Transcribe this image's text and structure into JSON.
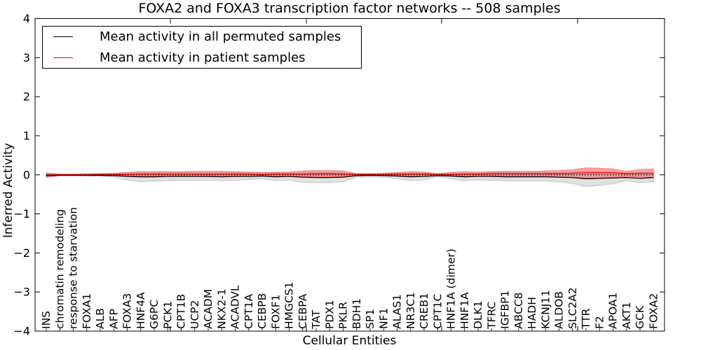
{
  "title": "FOXA2 and FOXA3 transcription factor networks -- 508 samples",
  "axes": {
    "x_label": "Cellular Entities",
    "y_label": "Inferred Activity",
    "y_ticks": [
      {
        "label": "4",
        "value": 4
      },
      {
        "label": "3",
        "value": 3
      },
      {
        "label": "2",
        "value": 2
      },
      {
        "label": "1",
        "value": 1
      },
      {
        "label": "0",
        "value": 0
      },
      {
        "label": "−1",
        "value": -1
      },
      {
        "label": "−2",
        "value": -2
      },
      {
        "label": "−3",
        "value": -3
      },
      {
        "label": "−4",
        "value": -4
      }
    ]
  },
  "legend": [
    {
      "label": "Mean activity in all permuted samples",
      "color": "#000000"
    },
    {
      "label": "Mean activity in patient samples",
      "color": "#ff0000"
    }
  ],
  "colors": {
    "permuted_line": "#000000",
    "permuted_band": "#bdbdbd",
    "patient_line": "#ff0000",
    "patient_band": "#ff4d4d",
    "zero_line": "#000000"
  },
  "chart_data": {
    "type": "line",
    "title": "FOXA2 and FOXA3 transcription factor networks -- 508 samples",
    "xlabel": "Cellular Entities",
    "ylabel": "Inferred Activity",
    "ylim": [
      -4,
      4
    ],
    "grid": false,
    "legend_position": "upper left",
    "zero_reference_line": 0,
    "categories": [
      "INS",
      "chromatin remodeling",
      "response to starvation",
      "FOXA1",
      "ALB",
      "AFP",
      "FOXA3",
      "HNF4A",
      "G6PC",
      "PCK1",
      "CPT1B",
      "UCP2",
      "ACADM",
      "NKX2-1",
      "ACADVL",
      "CPT1A",
      "CEBPB",
      "FOXF1",
      "HMGCS1",
      "CEBPA",
      "TAT",
      "PDX1",
      "PKLR",
      "BDH1",
      "SP1",
      "NF1",
      "ALAS1",
      "NR3C1",
      "CREB1",
      "CPT1C",
      "HNF1A (dimer)",
      "HNF1A",
      "DLK1",
      "TFRC",
      "IGFBP1",
      "ABCC8",
      "HADH",
      "KCNJ11",
      "ALDOB",
      "SLC2A2",
      "TTR",
      "F2",
      "APOA1",
      "AKT1",
      "GCK",
      "FOXA2"
    ],
    "series": [
      {
        "name": "Mean activity in all permuted samples",
        "color": "#000000",
        "values": [
          -0.02,
          -0.01,
          -0.01,
          -0.01,
          -0.01,
          -0.02,
          -0.04,
          -0.05,
          -0.05,
          -0.04,
          -0.04,
          -0.04,
          -0.04,
          -0.05,
          -0.04,
          -0.04,
          -0.03,
          -0.05,
          -0.04,
          -0.06,
          -0.07,
          -0.07,
          -0.06,
          -0.02,
          -0.01,
          -0.02,
          -0.03,
          -0.05,
          -0.04,
          -0.02,
          -0.03,
          -0.05,
          -0.04,
          -0.04,
          -0.05,
          -0.05,
          -0.05,
          -0.05,
          -0.06,
          -0.07,
          -0.1,
          -0.09,
          -0.08,
          -0.07,
          -0.09,
          -0.07
        ],
        "band_lower": [
          -0.07,
          -0.03,
          -0.03,
          -0.04,
          -0.04,
          -0.06,
          -0.13,
          -0.18,
          -0.16,
          -0.15,
          -0.14,
          -0.14,
          -0.14,
          -0.15,
          -0.14,
          -0.12,
          -0.1,
          -0.15,
          -0.13,
          -0.19,
          -0.2,
          -0.2,
          -0.18,
          -0.06,
          -0.05,
          -0.06,
          -0.1,
          -0.15,
          -0.13,
          -0.05,
          -0.1,
          -0.15,
          -0.13,
          -0.14,
          -0.15,
          -0.16,
          -0.16,
          -0.16,
          -0.18,
          -0.22,
          -0.3,
          -0.27,
          -0.23,
          -0.15,
          -0.2,
          -0.18
        ],
        "band_upper": [
          0.03,
          0.01,
          0.01,
          0.02,
          0.02,
          0.02,
          0.05,
          0.07,
          0.06,
          0.06,
          0.06,
          0.06,
          0.06,
          0.06,
          0.06,
          0.05,
          0.04,
          0.05,
          0.05,
          0.06,
          0.06,
          0.06,
          0.06,
          0.02,
          0.02,
          0.03,
          0.04,
          0.05,
          0.05,
          0.02,
          0.04,
          0.05,
          0.05,
          0.06,
          0.06,
          0.06,
          0.06,
          0.06,
          0.06,
          0.07,
          0.09,
          0.08,
          0.07,
          0.05,
          0.06,
          0.05
        ]
      },
      {
        "name": "Mean activity in patient samples",
        "color": "#ff0000",
        "values": [
          0.0,
          0.0,
          0.0,
          0.0,
          0.01,
          0.01,
          0.01,
          0.02,
          0.02,
          0.02,
          0.02,
          0.02,
          0.02,
          0.02,
          0.02,
          0.02,
          0.01,
          0.02,
          0.02,
          0.02,
          0.03,
          0.03,
          0.02,
          0.01,
          0.01,
          0.01,
          0.02,
          0.02,
          0.02,
          0.01,
          0.01,
          0.02,
          0.02,
          0.03,
          0.03,
          0.03,
          0.03,
          0.03,
          0.03,
          0.04,
          0.05,
          0.05,
          0.05,
          0.03,
          0.04,
          0.04
        ],
        "band_lower": [
          -0.05,
          -0.02,
          -0.02,
          -0.02,
          -0.02,
          -0.02,
          -0.03,
          -0.04,
          -0.04,
          -0.04,
          -0.04,
          -0.04,
          -0.05,
          -0.05,
          -0.04,
          -0.04,
          -0.03,
          -0.04,
          -0.04,
          -0.05,
          -0.05,
          -0.05,
          -0.05,
          -0.02,
          -0.02,
          -0.02,
          -0.03,
          -0.04,
          -0.04,
          -0.02,
          -0.03,
          -0.04,
          -0.04,
          -0.04,
          -0.05,
          -0.05,
          -0.05,
          -0.05,
          -0.06,
          -0.07,
          -0.08,
          -0.08,
          -0.07,
          -0.04,
          -0.06,
          -0.07
        ],
        "band_upper": [
          0.05,
          0.02,
          0.02,
          0.03,
          0.03,
          0.04,
          0.06,
          0.08,
          0.08,
          0.08,
          0.08,
          0.09,
          0.09,
          0.09,
          0.08,
          0.07,
          0.06,
          0.07,
          0.07,
          0.1,
          0.11,
          0.11,
          0.1,
          0.03,
          0.03,
          0.04,
          0.06,
          0.08,
          0.07,
          0.03,
          0.06,
          0.08,
          0.07,
          0.08,
          0.09,
          0.09,
          0.09,
          0.1,
          0.11,
          0.13,
          0.18,
          0.17,
          0.15,
          0.09,
          0.14,
          0.15
        ]
      }
    ]
  }
}
